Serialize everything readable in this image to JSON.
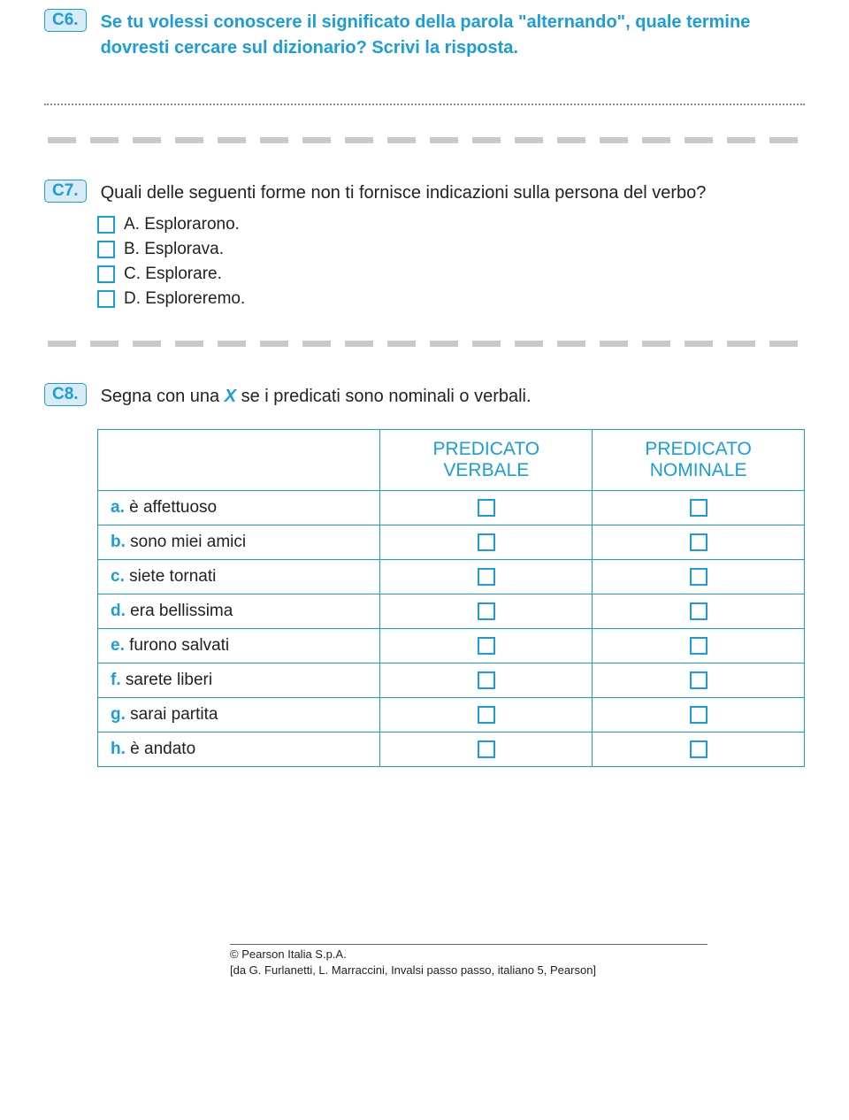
{
  "colors": {
    "accent": "#1a9dd9",
    "badge_bg": "#d9ecf6",
    "text": "#222222",
    "divider": "#b0b3b5",
    "dotted": "#888888"
  },
  "c6": {
    "badge": "C6.",
    "text": "Se tu volessi conoscere il significato della parola \"alternando\", quale termine dovresti cercare sul dizionario? Scrivi la risposta."
  },
  "c7": {
    "badge": "C7.",
    "text": "Quali delle seguenti forme non ti fornisce indicazioni sulla persona del verbo?",
    "options": [
      {
        "letter": "A.",
        "text": "Esplorarono."
      },
      {
        "letter": "B.",
        "text": "Esplorava."
      },
      {
        "letter": "C.",
        "text": "Esplorare."
      },
      {
        "letter": "D.",
        "text": "Esploreremo."
      }
    ]
  },
  "c8": {
    "badge": "C8.",
    "text_before": "Segna con una ",
    "x": "X",
    "text_after": " se i predicati sono nominali o verbali.",
    "headers": {
      "col1_line1": "PREDICATO",
      "col1_line2": "VERBALE",
      "col2_line1": "PREDICATO",
      "col2_line2": "NOMINALE"
    },
    "rows": [
      {
        "letter": "a.",
        "text": "è affettuoso"
      },
      {
        "letter": "b.",
        "text": "sono miei amici"
      },
      {
        "letter": "c.",
        "text": "siete tornati"
      },
      {
        "letter": "d.",
        "text": "era bellissima"
      },
      {
        "letter": "e.",
        "text": "furono salvati"
      },
      {
        "letter": "f.",
        "text": "sarete liberi"
      },
      {
        "letter": "g.",
        "text": "sarai partita"
      },
      {
        "letter": "h.",
        "text": "è andato"
      }
    ]
  },
  "footer": {
    "line1": "© Pearson Italia S.p.A.",
    "line2": "[da G. Furlanetti, L. Marraccini, Invalsi passo passo, italiano 5, Pearson]"
  }
}
